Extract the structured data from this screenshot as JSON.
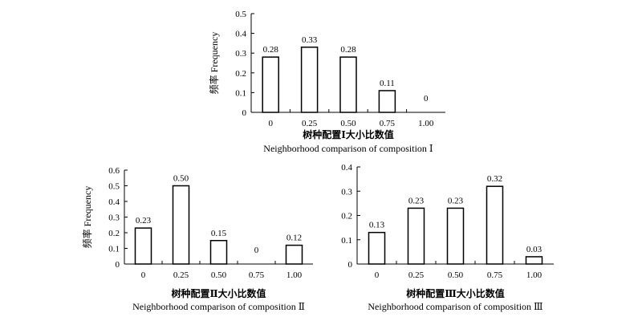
{
  "chart_data": [
    {
      "type": "bar",
      "categories": [
        "0",
        "0.25",
        "0.50",
        "0.75",
        "1.00"
      ],
      "values": [
        0.28,
        0.33,
        0.28,
        0.11,
        0
      ],
      "data_labels": [
        "0.28",
        "0.33",
        "0.28",
        "0.11",
        "0"
      ],
      "ylabel": "频率 Frequency",
      "xlabel": "树种配置Ⅰ大小比数值",
      "xlabel_en": "Neighborhood comparison of composition Ⅰ",
      "ylim": [
        0,
        0.5
      ],
      "yticks": [
        "0",
        "0.1",
        "0.2",
        "0.3",
        "0.4",
        "0.5"
      ]
    },
    {
      "type": "bar",
      "categories": [
        "0",
        "0.25",
        "0.50",
        "0.75",
        "1.00"
      ],
      "values": [
        0.23,
        0.5,
        0.15,
        0,
        0.12
      ],
      "data_labels": [
        "0.23",
        "0.50",
        "0.15",
        "0",
        "0.12"
      ],
      "ylabel": "频率 Frequency",
      "xlabel": "树种配置Ⅱ大小比数值",
      "xlabel_en": "Neighborhood comparison of composition Ⅱ",
      "ylim": [
        0,
        0.6
      ],
      "yticks": [
        "0",
        "0.1",
        "0.2",
        "0.3",
        "0.4",
        "0.5",
        "0.6"
      ]
    },
    {
      "type": "bar",
      "categories": [
        "0",
        "0.25",
        "0.50",
        "0.75",
        "1.00"
      ],
      "values": [
        0.13,
        0.23,
        0.23,
        0.32,
        0.03
      ],
      "data_labels": [
        "0.13",
        "0.23",
        "0.23",
        "0.32",
        "0.03"
      ],
      "ylabel": "",
      "xlabel": "树种配置Ⅲ大小比数值",
      "xlabel_en": "Neighborhood comparison of composition Ⅲ",
      "ylim": [
        0,
        0.4
      ],
      "yticks": [
        "0",
        "0.1",
        "0.2",
        "0.3",
        "0.4"
      ]
    }
  ]
}
